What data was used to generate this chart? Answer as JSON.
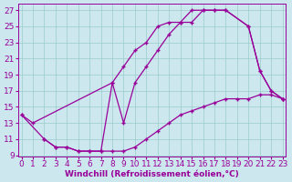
{
  "xlabel": "Windchill (Refroidissement éolien,°C)",
  "background_color": "#cce8ee",
  "line_color": "#990099",
  "grid_color": "#99cccc",
  "xlim": [
    -0.3,
    23.3
  ],
  "ylim": [
    8.8,
    27.8
  ],
  "xticks": [
    0,
    1,
    2,
    3,
    4,
    5,
    6,
    7,
    8,
    9,
    10,
    11,
    12,
    13,
    14,
    15,
    16,
    17,
    18,
    19,
    20,
    21,
    22,
    23
  ],
  "yticks": [
    9,
    11,
    13,
    15,
    17,
    19,
    21,
    23,
    25,
    27
  ],
  "line_A_x": [
    0,
    1,
    8,
    9,
    10,
    11,
    12,
    13,
    14,
    15,
    16,
    17,
    18,
    20,
    21,
    22,
    23
  ],
  "line_A_y": [
    14,
    13,
    18,
    20,
    22,
    23,
    25,
    25.5,
    25.5,
    27,
    27,
    27,
    27,
    25,
    19.5,
    17,
    16
  ],
  "line_B_x": [
    0,
    2,
    3,
    4,
    5,
    6,
    7,
    8,
    9,
    10,
    11,
    12,
    13,
    14,
    15,
    16,
    17,
    18,
    20,
    21,
    22,
    23
  ],
  "line_B_y": [
    14,
    11,
    10,
    10,
    9.5,
    9.5,
    9.5,
    18,
    13,
    18,
    20,
    22,
    24,
    25.5,
    25.5,
    27,
    27,
    27,
    25,
    19.5,
    17,
    16
  ],
  "line_C_x": [
    2,
    3,
    4,
    5,
    6,
    7,
    8,
    9,
    10,
    11,
    12,
    13,
    14,
    15,
    16,
    17,
    18,
    19,
    20,
    21,
    22,
    23
  ],
  "line_C_y": [
    11,
    10,
    10,
    9.5,
    9.5,
    9.5,
    9.5,
    9.5,
    10,
    11,
    12,
    13,
    14,
    14.5,
    15,
    15.5,
    16,
    16,
    16,
    16.5,
    16.5,
    16
  ],
  "font_color": "#990099",
  "font_size": 6.5
}
